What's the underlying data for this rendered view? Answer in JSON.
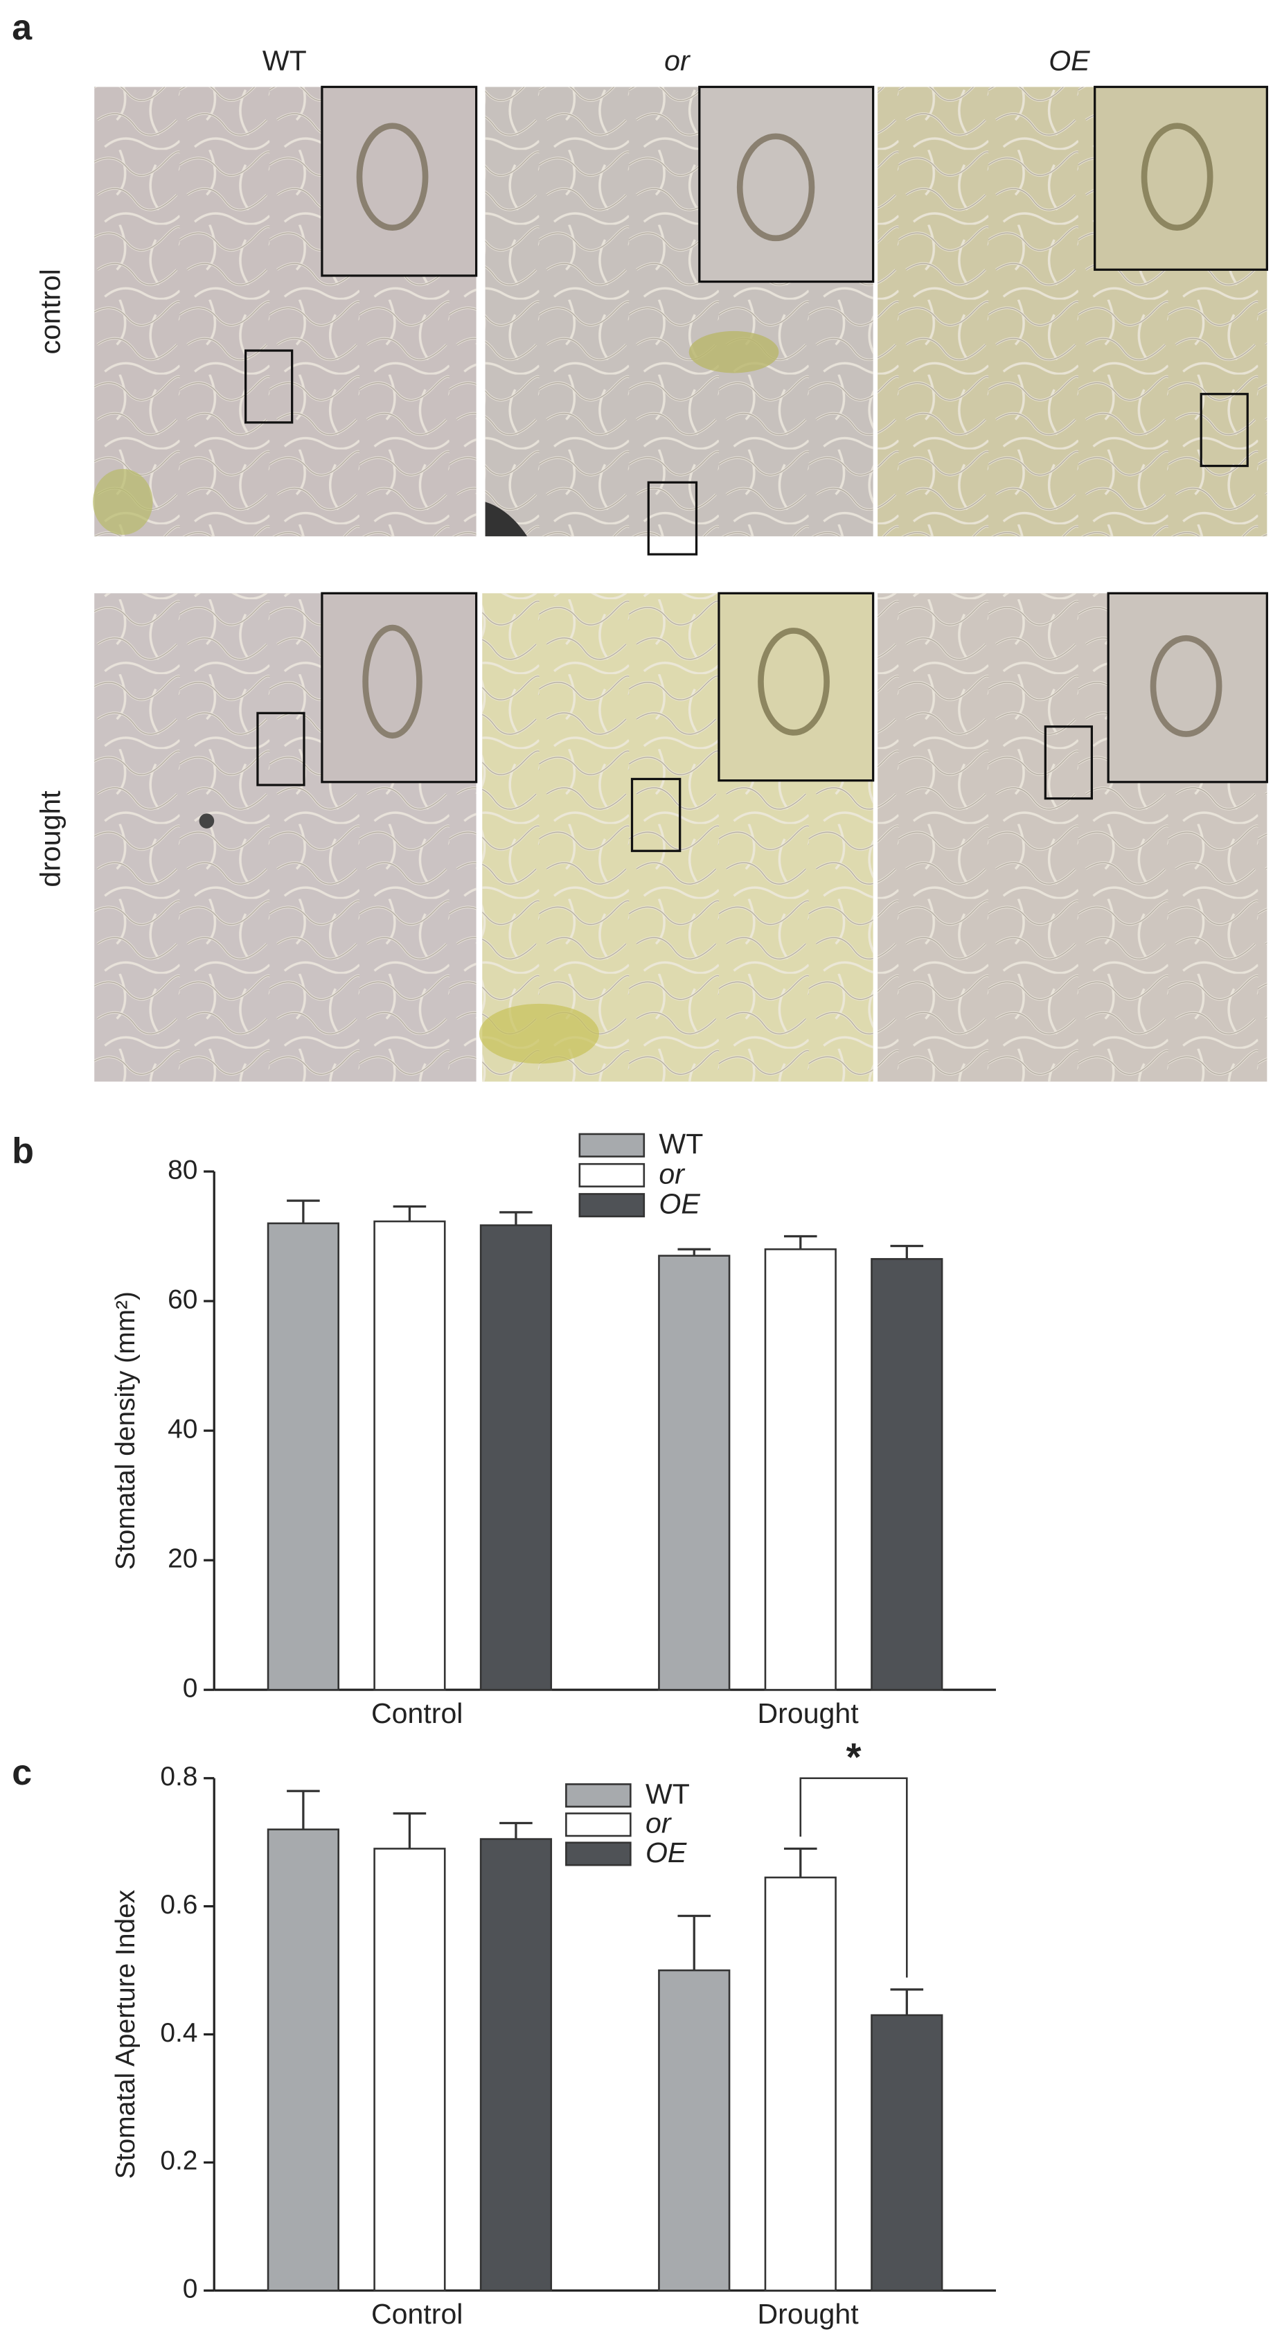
{
  "figure": {
    "panel_labels": [
      "a",
      "b",
      "c"
    ],
    "columns": [
      "WT",
      "or",
      "OE"
    ],
    "rows": [
      "control",
      "drought"
    ]
  },
  "chart_data": [
    {
      "type": "bar",
      "y_label": "Stomatal density (mm²)",
      "categories": [
        "Control",
        "Drought"
      ],
      "series": [
        {
          "name": "WT",
          "color": "#a7aaad",
          "font_style": "normal",
          "values": [
            72,
            67
          ],
          "errors": [
            3.5,
            1
          ]
        },
        {
          "name": "or",
          "color": "#ffffff",
          "font_style": "italic",
          "values": [
            72.3,
            68
          ],
          "errors": [
            2.3,
            2
          ]
        },
        {
          "name": "OE",
          "color": "#4f5256",
          "font_style": "italic",
          "values": [
            71.7,
            66.5
          ],
          "errors": [
            2,
            2
          ]
        }
      ],
      "ylim": [
        0,
        80
      ],
      "yticks": [
        0,
        20,
        40,
        60,
        80
      ],
      "legend": "top",
      "grid": false
    },
    {
      "type": "bar",
      "y_label": "Stomatal Aperture Index",
      "categories": [
        "Control",
        "Drought"
      ],
      "series": [
        {
          "name": "WT",
          "color": "#a7aaad",
          "font_style": "normal",
          "values": [
            0.72,
            0.5
          ],
          "errors": [
            0.06,
            0.085
          ]
        },
        {
          "name": "or",
          "color": "#ffffff",
          "font_style": "italic",
          "values": [
            0.69,
            0.645
          ],
          "errors": [
            0.055,
            0.045
          ]
        },
        {
          "name": "OE",
          "color": "#4f5256",
          "font_style": "italic",
          "values": [
            0.705,
            0.43
          ],
          "errors": [
            0.025,
            0.04
          ]
        }
      ],
      "ylim": [
        0,
        0.8
      ],
      "yticks": [
        0,
        0.2,
        0.4,
        0.6,
        0.8
      ],
      "legend": "top",
      "grid": false,
      "annotations": [
        "*"
      ]
    }
  ]
}
